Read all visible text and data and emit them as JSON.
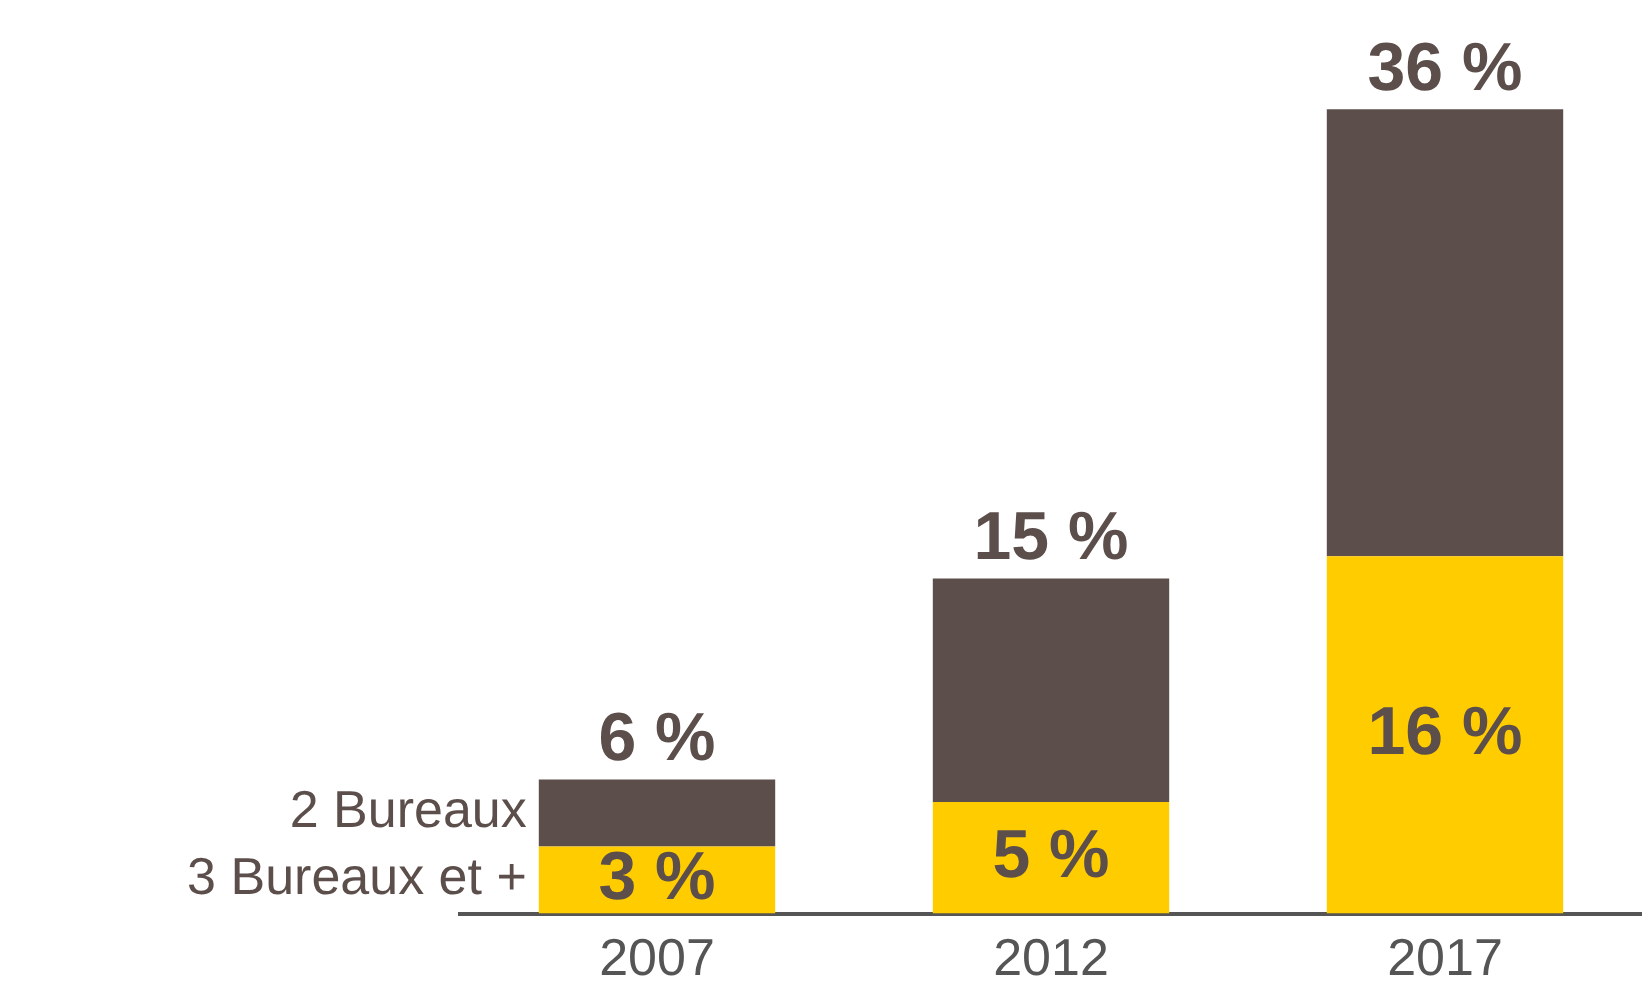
{
  "chart_data": {
    "type": "bar",
    "stacked": true,
    "categories": [
      "2007",
      "2012",
      "2017"
    ],
    "series": [
      {
        "name": "3 Bureaux et +",
        "color": "#ffcc00",
        "values": [
          3,
          5,
          16
        ],
        "value_labels": [
          "3 %",
          "5 %",
          "16 %"
        ]
      },
      {
        "name": "2 Bureaux",
        "color": "#5c4f4b",
        "values": [
          3,
          10,
          20
        ]
      }
    ],
    "totals": [
      "6 %",
      "15 %",
      "36 %"
    ],
    "grid": false,
    "legend": false
  }
}
